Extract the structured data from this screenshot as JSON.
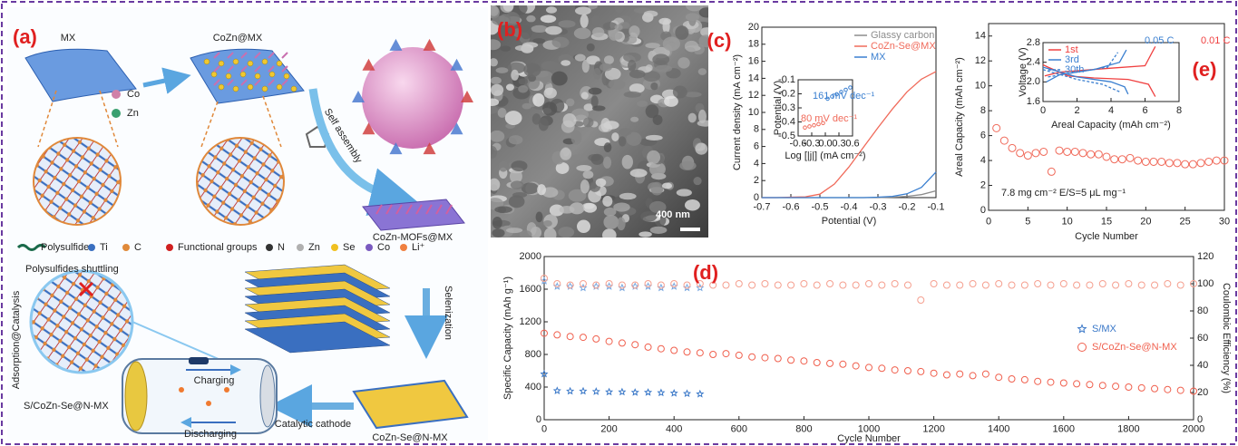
{
  "panels": {
    "a": {
      "label": "(a)",
      "mx": "MX",
      "cozn_mx": "CoZn@MX",
      "co": "Co",
      "zn": "Zn",
      "self_assembly": "Self assembly",
      "mofs": "CoZn-MOFs@MX",
      "legend": [
        "Polysulfides",
        "Ti",
        "C",
        "Functional groups",
        "N",
        "Zn",
        "Se",
        "Co",
        "Li⁺"
      ],
      "shuttling": "Polysulfides shuttling",
      "adsorption": "Adsorption@Catalysis",
      "charging": "Charging",
      "discharging": "Discharging",
      "cathode_label": "S/CoZn-Se@N-MX",
      "catalytic": "Catalytic cathode",
      "selenization": "Selenization",
      "product": "CoZn-Se@N-MX"
    },
    "b": {
      "label": "(b)",
      "scale_bar": "400 nm"
    }
  },
  "chart_data": [
    {
      "type": "line",
      "label": "(c)",
      "xlabel": "Potential (V)",
      "ylabel": "Current density (mA cm⁻²)",
      "xlim": [
        -0.7,
        -0.1
      ],
      "xticks": [
        -0.7,
        -0.6,
        -0.5,
        -0.4,
        -0.3,
        -0.2,
        -0.1
      ],
      "ylim": [
        0,
        20
      ],
      "yticks": [
        0,
        2,
        4,
        6,
        8,
        10,
        12,
        14,
        16,
        18,
        20
      ],
      "legend": "upper right",
      "x": [
        -0.7,
        -0.65,
        -0.6,
        -0.55,
        -0.5,
        -0.45,
        -0.4,
        -0.35,
        -0.3,
        -0.25,
        -0.2,
        -0.15,
        -0.1
      ],
      "series": [
        {
          "name": "Glassy carbon",
          "color": "#8c8c8c",
          "values": [
            0,
            0,
            0,
            0,
            0,
            0,
            0,
            0,
            0,
            0.05,
            0.15,
            0.35,
            0.8
          ]
        },
        {
          "name": "CoZn-Se@MX",
          "color": "#f06a5a",
          "values": [
            0,
            0,
            0.05,
            0.1,
            0.4,
            1.6,
            3.6,
            5.9,
            8.2,
            10.4,
            12.4,
            13.9,
            14.8
          ]
        },
        {
          "name": "MX",
          "color": "#3a7fd0",
          "values": [
            0,
            0,
            0,
            0,
            0,
            0,
            0,
            0,
            0.05,
            0.15,
            0.45,
            1.2,
            3.0
          ]
        }
      ],
      "inset": {
        "type": "scatter",
        "xlabel": "Log [|j|] (mA cm⁻²)",
        "ylabel": "Potential (V)",
        "xlim": [
          -0.6,
          0.6
        ],
        "xticks": [
          -0.6,
          -0.3,
          {
            "value": 0,
            "label": "0.0"
          },
          0.3,
          0.6
        ],
        "ylim": [
          -0.5,
          -0.1
        ],
        "yticks": [
          -0.5,
          -0.4,
          -0.3,
          -0.2,
          -0.1
        ],
        "annotations": [
          "161 mV dec⁻¹",
          "80 mV dec⁻¹"
        ],
        "series": [
          {
            "color": "#3a7fd0",
            "x": [
              0.05,
              0.15,
              0.25,
              0.35,
              0.45,
              0.55
            ],
            "values": [
              -0.235,
              -0.219,
              -0.203,
              -0.187,
              -0.171,
              -0.155
            ]
          },
          {
            "color": "#f06a5a",
            "x": [
              -0.45,
              -0.35,
              -0.25,
              -0.15,
              -0.05
            ],
            "values": [
              -0.44,
              -0.432,
              -0.424,
              -0.416,
              -0.408
            ]
          }
        ]
      }
    },
    {
      "type": "scatter",
      "label": "(e)",
      "xlabel": "Cycle Number",
      "ylabel": "Areal Capacity (mAh cm⁻²)",
      "xlim": [
        0,
        30
      ],
      "xticks": [
        0,
        5,
        10,
        15,
        20,
        25,
        30
      ],
      "ylim": [
        0,
        15
      ],
      "yticks": [
        0,
        2,
        4,
        6,
        8,
        10,
        12,
        14
      ],
      "annotation": "7.8 mg cm⁻²  E/S=5 μL mg⁻¹",
      "x": [
        1,
        2,
        3,
        4,
        5,
        6,
        7,
        8,
        9,
        10,
        11,
        12,
        13,
        14,
        15,
        16,
        17,
        18,
        19,
        20,
        21,
        22,
        23,
        24,
        25,
        26,
        27,
        28,
        29,
        30
      ],
      "series": [
        {
          "color": "#f06a5a",
          "marker": "circle",
          "values": [
            6.6,
            5.6,
            5.0,
            4.6,
            4.4,
            4.6,
            4.7,
            3.1,
            4.8,
            4.7,
            4.7,
            4.6,
            4.5,
            4.5,
            4.3,
            4.1,
            4.1,
            4.2,
            4.0,
            3.9,
            3.9,
            3.9,
            3.8,
            3.8,
            3.7,
            3.7,
            3.8,
            3.9,
            4.0,
            4.0
          ]
        }
      ],
      "inset": {
        "type": "line",
        "xlabel": "Areal Capacity (mAh cm⁻²)",
        "ylabel": "Voltage (V)",
        "xlim": [
          0,
          8
        ],
        "xticks": [
          0,
          2,
          4,
          6,
          8
        ],
        "ylim": [
          1.6,
          2.8
        ],
        "yticks": [
          1.6,
          {
            "value": 2,
            "label": "2.0"
          },
          2.4,
          2.8
        ],
        "legend": "upper left",
        "annotations": [
          "0.05 C",
          "0.01 C"
        ],
        "series": [
          {
            "name": "1st",
            "color": "#f04040",
            "x": [
              0,
              0.3,
              1.5,
              3,
              5,
              6.2,
              6.6,
              6.6,
              0.1,
              1,
              4,
              6,
              6.6
            ],
            "values": [
              2.35,
              2.3,
              2.12,
              2.08,
              2.05,
              1.95,
              1.7,
              null,
              2.12,
              2.2,
              2.28,
              2.33,
              2.72
            ]
          },
          {
            "name": "3rd",
            "color": "#3a7fd0",
            "x": [
              0,
              0.5,
              2,
              4,
              4.8,
              5,
              5,
              0.2,
              1,
              3,
              4.5,
              4.9
            ],
            "values": [
              2.3,
              2.25,
              2.1,
              2.0,
              1.9,
              1.75,
              null,
              2.0,
              2.15,
              2.25,
              2.4,
              2.65
            ]
          },
          {
            "name": "30th",
            "color": "#3a7fd0",
            "dashed": true,
            "x": [
              0,
              2,
              3.5,
              4.5,
              4.5,
              0.3,
              2,
              3.8,
              4.4
            ],
            "values": [
              2.25,
              2.05,
              1.95,
              1.8,
              null,
              2.1,
              2.2,
              2.3,
              2.6
            ]
          }
        ]
      }
    },
    {
      "type": "scatter",
      "label": "(d)",
      "xlabel": "Cycle Number",
      "ylabel": "Specific Capacity (mAh g⁻¹)",
      "y2label": "Coulombic Efficiency (%)",
      "xlim": [
        0,
        2000
      ],
      "xticks": [
        0,
        200,
        400,
        600,
        800,
        1000,
        1200,
        1400,
        1600,
        1800,
        2000
      ],
      "ylim": [
        0,
        2000
      ],
      "yticks": [
        0,
        400,
        800,
        1200,
        1600,
        2000
      ],
      "y2lim": [
        0,
        120
      ],
      "y2ticks": [
        0,
        20,
        40,
        60,
        80,
        100,
        120
      ],
      "legend": "center right",
      "x": [
        0,
        40,
        80,
        120,
        160,
        200,
        240,
        280,
        320,
        360,
        400,
        440,
        480,
        520,
        560,
        600,
        640,
        680,
        720,
        760,
        800,
        840,
        880,
        920,
        960,
        1000,
        1040,
        1080,
        1120,
        1160,
        1200,
        1240,
        1280,
        1320,
        1360,
        1400,
        1440,
        1480,
        1520,
        1560,
        1600,
        1640,
        1680,
        1720,
        1760,
        1800,
        1840,
        1880,
        1920,
        1960,
        2000
      ],
      "series": [
        {
          "name": "S/MX",
          "color": "#3a78c8",
          "marker": "star",
          "values": [
            560,
            355,
            350,
            350,
            345,
            340,
            340,
            335,
            335,
            330,
            325,
            320,
            315,
            null,
            null,
            null,
            null,
            null,
            null,
            null,
            null,
            null,
            null,
            null,
            null,
            null,
            null,
            null,
            null,
            null,
            null,
            null,
            null,
            null,
            null,
            null,
            null,
            null,
            null,
            null,
            null,
            null,
            null,
            null,
            null,
            null,
            null,
            null,
            null,
            null,
            null
          ]
        },
        {
          "name": "S/CoZn-Se@N-MX",
          "color": "#f0604e",
          "marker": "circle",
          "values": [
            1060,
            1040,
            1020,
            1010,
            990,
            960,
            940,
            920,
            890,
            870,
            850,
            830,
            820,
            800,
            810,
            790,
            770,
            760,
            750,
            730,
            720,
            700,
            690,
            680,
            660,
            640,
            630,
            610,
            600,
            590,
            570,
            550,
            560,
            540,
            560,
            520,
            500,
            490,
            470,
            460,
            450,
            440,
            430,
            420,
            410,
            400,
            390,
            380,
            370,
            360,
            350
          ]
        },
        {
          "color": "#7aa8e0",
          "marker": "star",
          "axis": "y2",
          "values": [
            102,
            98,
            98,
            97,
            98,
            98,
            97,
            98,
            98,
            97,
            98,
            97,
            97,
            null,
            null,
            null,
            null,
            null,
            null,
            null,
            null,
            null,
            null,
            null,
            null,
            null,
            null,
            null,
            null,
            null,
            null,
            null,
            null,
            null,
            null,
            null,
            null,
            null,
            null,
            null,
            null,
            null,
            null,
            null,
            null,
            null,
            null,
            null,
            null,
            null,
            null
          ]
        },
        {
          "color": "#f5a090",
          "marker": "circle",
          "axis": "y2",
          "values": [
            104,
            100,
            99,
            100,
            99,
            100,
            99,
            99,
            100,
            99,
            100,
            99,
            100,
            99,
            99,
            100,
            99,
            100,
            99,
            99,
            100,
            99,
            100,
            99,
            99,
            100,
            99,
            100,
            99,
            88,
            100,
            99,
            99,
            100,
            99,
            100,
            99,
            99,
            100,
            99,
            100,
            99,
            99,
            100,
            99,
            100,
            99,
            99,
            100,
            99,
            100
          ]
        }
      ]
    }
  ]
}
